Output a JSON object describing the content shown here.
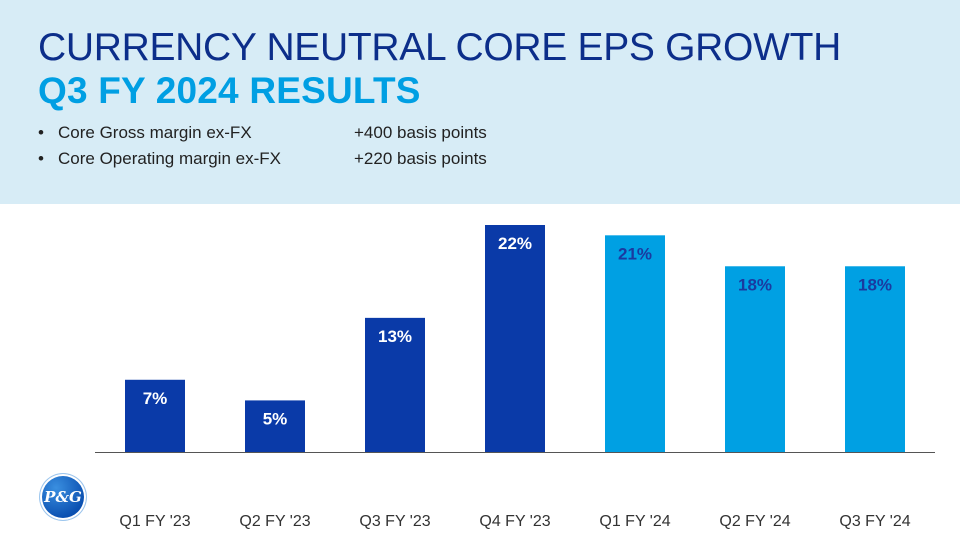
{
  "header": {
    "title_line1": "CURRENCY NEUTRAL CORE EPS GROWTH",
    "title_line2": "Q3 FY 2024 RESULTS",
    "bullets": [
      {
        "marker": "•",
        "label": "Core Gross margin ex-FX",
        "value": "+400 basis points"
      },
      {
        "marker": "•",
        "label": "Core Operating margin ex-FX",
        "value": "+220 basis points"
      }
    ]
  },
  "logo": {
    "text": "P&G"
  },
  "colors": {
    "header_bg": "#d7ecf6",
    "title_dark": "#0c2e8a",
    "title_light": "#009fe3",
    "bar_fy23": "#0a3aa8",
    "bar_fy24": "#00a0e3",
    "label_on_dark": "#ffffff",
    "label_on_light": "#1a3aa0"
  },
  "chart_data": {
    "type": "bar",
    "title": "",
    "xlabel": "",
    "ylabel": "",
    "categories": [
      "Q1 FY '23",
      "Q2 FY '23",
      "Q3 FY '23",
      "Q4 FY '23",
      "Q1 FY '24",
      "Q2 FY '24",
      "Q3 FY '24"
    ],
    "values": [
      7,
      5,
      13,
      22,
      21,
      18,
      18
    ],
    "data_labels": [
      "7%",
      "5%",
      "13%",
      "22%",
      "21%",
      "18%",
      "18%"
    ],
    "fiscal_year_group": [
      "FY23",
      "FY23",
      "FY23",
      "FY23",
      "FY24",
      "FY24",
      "FY24"
    ],
    "ylim": [
      0,
      22
    ],
    "grid": false,
    "legend": "none"
  }
}
